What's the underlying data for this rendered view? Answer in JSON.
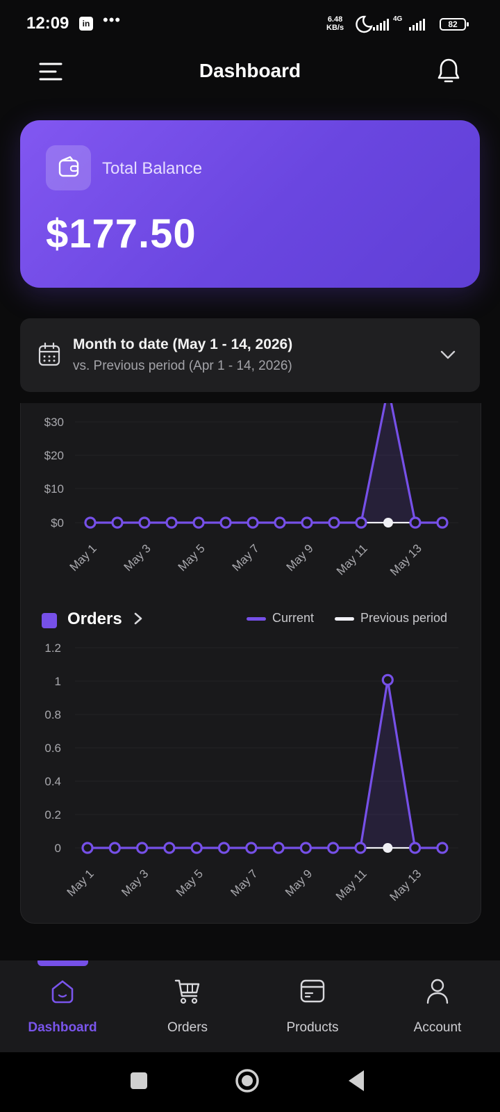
{
  "status_bar": {
    "time": "12:09",
    "app_badge": "in",
    "overflow": "•••",
    "net_speed_value": "6.48",
    "net_speed_unit": "KB/s",
    "network": "4G",
    "battery": "82"
  },
  "header": {
    "title": "Dashboard",
    "menu_icon": "menu-icon",
    "bell_icon": "bell-icon"
  },
  "balance": {
    "label": "Total Balance",
    "amount": "$177.50",
    "icon": "wallet-icon"
  },
  "period": {
    "title": "Month to date (May 1 - 14, 2026)",
    "subtitle": "vs. Previous period (Apr 1 - 14, 2026)",
    "icon": "calendar-icon"
  },
  "orders_section": {
    "title": "Orders",
    "legend_current": "Current",
    "legend_previous": "Previous period"
  },
  "colors": {
    "accent": "#7650e8",
    "previous": "#f0f0f5",
    "card": "#1f1f21"
  },
  "chart_data": [
    {
      "type": "line",
      "title": "",
      "x": [
        "May 1",
        "May 2",
        "May 3",
        "May 4",
        "May 5",
        "May 6",
        "May 7",
        "May 8",
        "May 9",
        "May 10",
        "May 11",
        "May 12",
        "May 13",
        "May 14"
      ],
      "x_tick_labels": [
        "May 1",
        "May 3",
        "May 5",
        "May 7",
        "May 9",
        "May 11",
        "May 13"
      ],
      "y_tick_labels": [
        "$30",
        "$20",
        "$10",
        "$0"
      ],
      "ylim": [
        0,
        30
      ],
      "series": [
        {
          "name": "Current",
          "values": [
            0,
            0,
            0,
            0,
            0,
            0,
            0,
            0,
            0,
            0,
            0,
            40,
            0,
            0
          ]
        },
        {
          "name": "Previous period",
          "values": [
            null,
            null,
            null,
            null,
            null,
            null,
            null,
            null,
            null,
            null,
            0,
            0,
            0,
            null
          ]
        }
      ],
      "grid": true
    },
    {
      "type": "line",
      "title": "Orders",
      "x": [
        "May 1",
        "May 2",
        "May 3",
        "May 4",
        "May 5",
        "May 6",
        "May 7",
        "May 8",
        "May 9",
        "May 10",
        "May 11",
        "May 12",
        "May 13",
        "May 14"
      ],
      "x_tick_labels": [
        "May 1",
        "May 3",
        "May 5",
        "May 7",
        "May 9",
        "May 11",
        "May 13"
      ],
      "y_tick_labels": [
        "1.2",
        "1",
        "0.8",
        "0.6",
        "0.4",
        "0.2",
        "0"
      ],
      "ylim": [
        0,
        1.2
      ],
      "series": [
        {
          "name": "Current",
          "values": [
            0,
            0,
            0,
            0,
            0,
            0,
            0,
            0,
            0,
            0,
            0,
            1,
            0,
            0
          ]
        },
        {
          "name": "Previous period",
          "values": [
            null,
            null,
            null,
            null,
            null,
            null,
            null,
            null,
            null,
            null,
            0,
            0,
            0,
            null
          ]
        }
      ],
      "legend": "top-right",
      "grid": true
    }
  ],
  "tabs": [
    {
      "label": "Dashboard",
      "icon": "home-icon",
      "active": true
    },
    {
      "label": "Orders",
      "icon": "cart-icon",
      "active": false
    },
    {
      "label": "Products",
      "icon": "box-icon",
      "active": false
    },
    {
      "label": "Account",
      "icon": "person-icon",
      "active": false
    }
  ],
  "nav": {
    "recents": "square-icon",
    "home": "circle-icon",
    "back": "triangle-back-icon"
  }
}
